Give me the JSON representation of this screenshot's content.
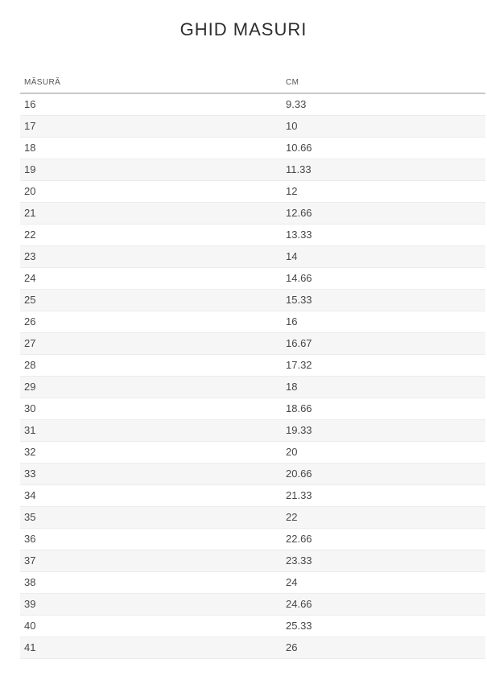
{
  "page": {
    "title": "GHID MASURI"
  },
  "table": {
    "columns": [
      "MĂSURĂ",
      "CM"
    ],
    "rows": [
      [
        "16",
        "9.33"
      ],
      [
        "17",
        "10"
      ],
      [
        "18",
        "10.66"
      ],
      [
        "19",
        "11.33"
      ],
      [
        "20",
        "12"
      ],
      [
        "21",
        "12.66"
      ],
      [
        "22",
        "13.33"
      ],
      [
        "23",
        "14"
      ],
      [
        "24",
        "14.66"
      ],
      [
        "25",
        "15.33"
      ],
      [
        "26",
        "16"
      ],
      [
        "27",
        "16.67"
      ],
      [
        "28",
        "17.32"
      ],
      [
        "29",
        "18"
      ],
      [
        "30",
        "18.66"
      ],
      [
        "31",
        "19.33"
      ],
      [
        "32",
        "20"
      ],
      [
        "33",
        "20.66"
      ],
      [
        "34",
        "21.33"
      ],
      [
        "35",
        "22"
      ],
      [
        "36",
        "22.66"
      ],
      [
        "37",
        "23.33"
      ],
      [
        "38",
        "24"
      ],
      [
        "39",
        "24.66"
      ],
      [
        "40",
        "25.33"
      ],
      [
        "41",
        "26"
      ]
    ]
  },
  "colors": {
    "background": "#ffffff",
    "title_text": "#2e2e2e",
    "header_text": "#555555",
    "cell_text": "#474747",
    "row_alt_background": "#f6f6f6",
    "row_border": "#ececec",
    "header_border": "#c9c9c9"
  },
  "chart_data": {
    "type": "table",
    "title": "GHID MASURI",
    "columns": [
      "MĂSURĂ",
      "CM"
    ],
    "rows": [
      [
        16,
        9.33
      ],
      [
        17,
        10
      ],
      [
        18,
        10.66
      ],
      [
        19,
        11.33
      ],
      [
        20,
        12
      ],
      [
        21,
        12.66
      ],
      [
        22,
        13.33
      ],
      [
        23,
        14
      ],
      [
        24,
        14.66
      ],
      [
        25,
        15.33
      ],
      [
        26,
        16
      ],
      [
        27,
        16.67
      ],
      [
        28,
        17.32
      ],
      [
        29,
        18
      ],
      [
        30,
        18.66
      ],
      [
        31,
        19.33
      ],
      [
        32,
        20
      ],
      [
        33,
        20.66
      ],
      [
        34,
        21.33
      ],
      [
        35,
        22
      ],
      [
        36,
        22.66
      ],
      [
        37,
        23.33
      ],
      [
        38,
        24
      ],
      [
        39,
        24.66
      ],
      [
        40,
        25.33
      ],
      [
        41,
        26
      ]
    ]
  }
}
